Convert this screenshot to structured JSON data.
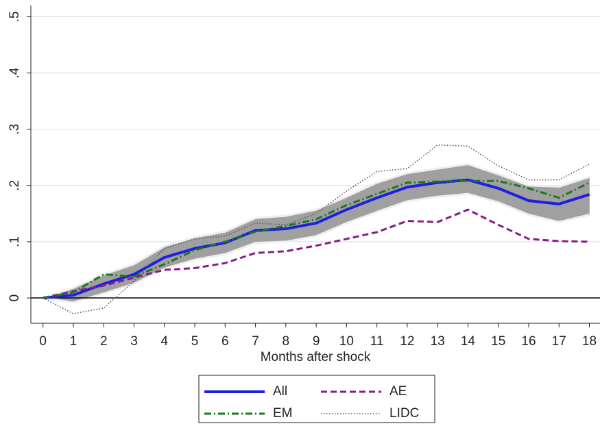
{
  "chart_data": {
    "type": "line",
    "x_label": "Months after shock",
    "x": [
      0,
      1,
      2,
      3,
      4,
      5,
      6,
      7,
      8,
      9,
      10,
      11,
      12,
      13,
      14,
      15,
      16,
      17,
      18
    ],
    "xlim": [
      -0.4,
      18.35
    ],
    "xticks": [
      0,
      1,
      2,
      3,
      4,
      5,
      6,
      7,
      8,
      9,
      10,
      11,
      12,
      13,
      14,
      15,
      16,
      17,
      18
    ],
    "ylim": [
      -0.045,
      0.52
    ],
    "yticks": [
      0,
      {
        "value": 0.1,
        "label": ".1"
      },
      {
        "value": 0.2,
        "label": ".2"
      },
      {
        "value": 0.3,
        "label": ".3"
      },
      {
        "value": 0.4,
        "label": ".4"
      },
      {
        "value": 0.5,
        "label": ".5"
      }
    ],
    "grid": true,
    "grid_color": "#dfe9ee",
    "zero_line": true,
    "band": {
      "color": "#a0a0a0",
      "lower": [
        0,
        -0.008,
        0.008,
        0.025,
        0.052,
        0.068,
        0.078,
        0.098,
        0.1,
        0.11,
        0.133,
        0.153,
        0.172,
        0.18,
        0.185,
        0.17,
        0.148,
        0.135,
        0.148
      ],
      "upper": [
        0,
        0.018,
        0.042,
        0.06,
        0.092,
        0.108,
        0.118,
        0.142,
        0.146,
        0.157,
        0.18,
        0.205,
        0.222,
        0.23,
        0.238,
        0.22,
        0.2,
        0.198,
        0.215
      ]
    },
    "series": [
      {
        "name": "All",
        "color": "#1f1fe0",
        "style": "solid",
        "values": [
          0,
          0.005,
          0.025,
          0.042,
          0.072,
          0.088,
          0.098,
          0.12,
          0.123,
          0.133,
          0.157,
          0.178,
          0.197,
          0.205,
          0.21,
          0.195,
          0.173,
          0.167,
          0.184
        ]
      },
      {
        "name": "AE",
        "color": "#8a1a8a",
        "style": "dashed",
        "values": [
          0,
          0.012,
          0.022,
          0.036,
          0.05,
          0.053,
          0.062,
          0.08,
          0.083,
          0.093,
          0.105,
          0.117,
          0.137,
          0.135,
          0.157,
          0.13,
          0.105,
          0.101,
          0.1
        ]
      },
      {
        "name": "EM",
        "color": "#1a7a1a",
        "style": "dashdot",
        "values": [
          0,
          0.01,
          0.042,
          0.038,
          0.06,
          0.085,
          0.1,
          0.118,
          0.128,
          0.14,
          0.165,
          0.185,
          0.205,
          0.207,
          0.208,
          0.208,
          0.195,
          0.178,
          0.205
        ]
      },
      {
        "name": "LIDC",
        "color": "#555555",
        "style": "dotted",
        "values": [
          0,
          -0.028,
          -0.018,
          0.03,
          0.088,
          0.105,
          0.11,
          0.133,
          0.13,
          0.15,
          0.19,
          0.225,
          0.23,
          0.272,
          0.27,
          0.235,
          0.21,
          0.21,
          0.238
        ]
      }
    ]
  }
}
